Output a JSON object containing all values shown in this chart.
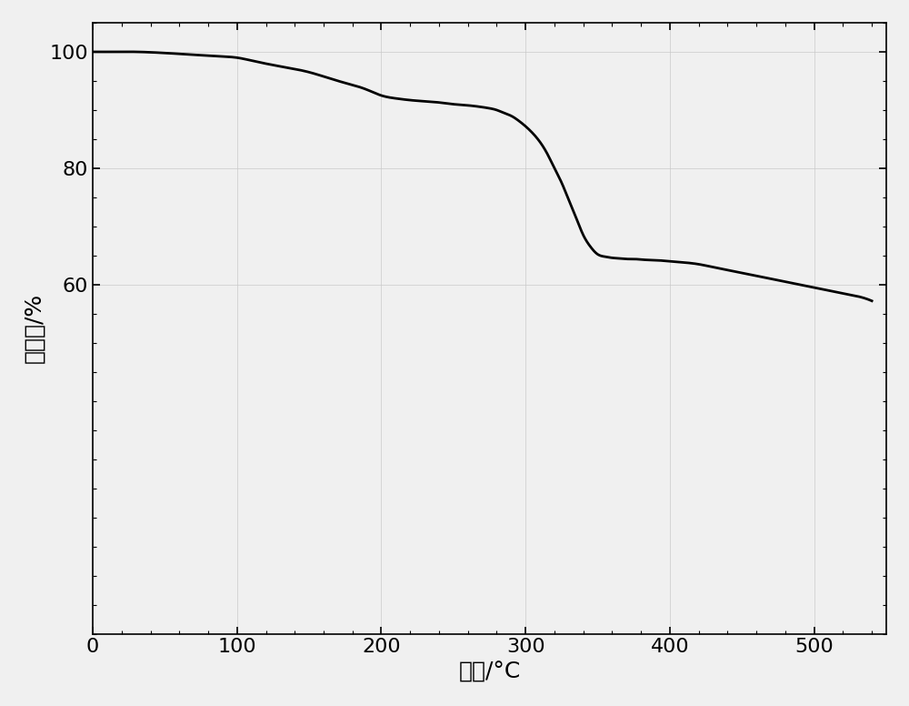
{
  "title": "",
  "xlabel": "温度/°C",
  "ylabel": "失重率/%",
  "xlim": [
    0,
    550
  ],
  "ylim": [
    0,
    105
  ],
  "xticks": [
    0,
    100,
    200,
    300,
    400,
    500
  ],
  "yticks": [
    60,
    80,
    100
  ],
  "line_color": "#000000",
  "line_width": 2.0,
  "background_color": "#f0f0f0",
  "curve_x": [
    0,
    10,
    30,
    50,
    70,
    90,
    100,
    110,
    130,
    150,
    170,
    190,
    200,
    210,
    220,
    230,
    240,
    250,
    260,
    270,
    275,
    280,
    285,
    290,
    295,
    300,
    305,
    310,
    315,
    320,
    325,
    330,
    335,
    340,
    345,
    350,
    355,
    360,
    365,
    370,
    375,
    380,
    390,
    400,
    410,
    420,
    430,
    440,
    450,
    460,
    470,
    480,
    490,
    500,
    510,
    520,
    530,
    540
  ],
  "curve_y": [
    100.0,
    100.0,
    100.0,
    99.8,
    99.5,
    99.2,
    99.0,
    98.5,
    97.5,
    96.5,
    95.0,
    93.5,
    92.5,
    92.0,
    91.7,
    91.5,
    91.3,
    91.0,
    90.8,
    90.5,
    90.3,
    90.0,
    89.5,
    89.0,
    88.2,
    87.2,
    86.0,
    84.5,
    82.5,
    80.0,
    77.5,
    74.5,
    71.5,
    68.5,
    66.5,
    65.2,
    64.8,
    64.6,
    64.5,
    64.4,
    64.4,
    64.3,
    64.2,
    64.0,
    63.8,
    63.5,
    63.0,
    62.5,
    62.0,
    61.5,
    61.0,
    60.5,
    60.0,
    59.5,
    59.0,
    58.5,
    58.0,
    57.2
  ],
  "xlabel_fontsize": 18,
  "ylabel_fontsize": 18,
  "tick_fontsize": 16,
  "grid_color": "#c8c8c8",
  "grid_alpha": 0.8,
  "grid_linewidth": 0.6
}
